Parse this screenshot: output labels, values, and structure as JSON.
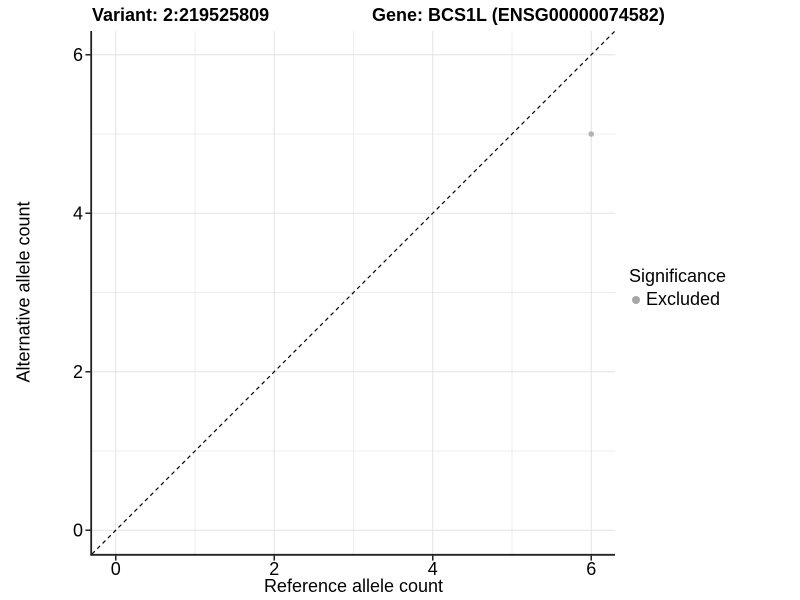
{
  "chart_data": {
    "type": "scatter",
    "title_left": "Variant: 2:219525809",
    "title_right": "Gene: BCS1L (ENSG00000074582)",
    "xlabel": "Reference allele count",
    "ylabel": "Alternative allele count",
    "xlim": [
      -0.3,
      6.3
    ],
    "ylim": [
      -0.3,
      6.3
    ],
    "x_ticks": [
      0,
      2,
      4,
      6
    ],
    "y_ticks": [
      0,
      2,
      4,
      6
    ],
    "x_tick_labels": [
      "0",
      "2",
      "4",
      "6"
    ],
    "y_tick_labels": [
      "0",
      "2",
      "4",
      "6"
    ],
    "x_minor_gridlines": [
      1,
      3,
      5
    ],
    "y_minor_gridlines": [
      1,
      3,
      5
    ],
    "grid": true,
    "points": [
      {
        "x": 6,
        "y": 5,
        "series": "Excluded"
      }
    ],
    "reference_line": {
      "kind": "identity y=x",
      "style": "dashed",
      "from": [
        -0.3,
        -0.3
      ],
      "to": [
        6.3,
        6.3
      ],
      "color": "#000000"
    },
    "legend": {
      "title": "Significance",
      "position": "right",
      "entries": [
        {
          "label": "Excluded",
          "color": "#a6a6a6"
        }
      ]
    },
    "colors": {
      "point": "#b3b3b3",
      "grid_major": "#e3e3e3",
      "grid_minor": "#eeeeee",
      "axis": "#222222",
      "background": "#ffffff"
    }
  }
}
